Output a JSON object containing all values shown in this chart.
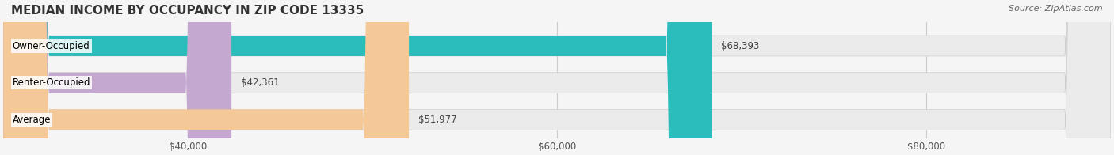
{
  "title": "MEDIAN INCOME BY OCCUPANCY IN ZIP CODE 13335",
  "source": "Source: ZipAtlas.com",
  "categories": [
    "Owner-Occupied",
    "Renter-Occupied",
    "Average"
  ],
  "values": [
    68393,
    42361,
    51977
  ],
  "bar_colors": [
    "#2bbcbc",
    "#c4a8d0",
    "#f5c897"
  ],
  "bar_bg_colors": [
    "#e8e8e8",
    "#e8e8e8",
    "#e8e8e8"
  ],
  "label_texts": [
    "$68,393",
    "$42,361",
    "$51,977"
  ],
  "xlim_min": 30000,
  "xlim_max": 90000,
  "xticks": [
    40000,
    60000,
    80000
  ],
  "xtick_labels": [
    "$40,000",
    "$60,000",
    "$80,000"
  ],
  "bar_height": 0.55,
  "bg_color": "#f5f5f5",
  "title_fontsize": 11,
  "source_fontsize": 8,
  "label_fontsize": 8.5,
  "tick_fontsize": 8.5
}
